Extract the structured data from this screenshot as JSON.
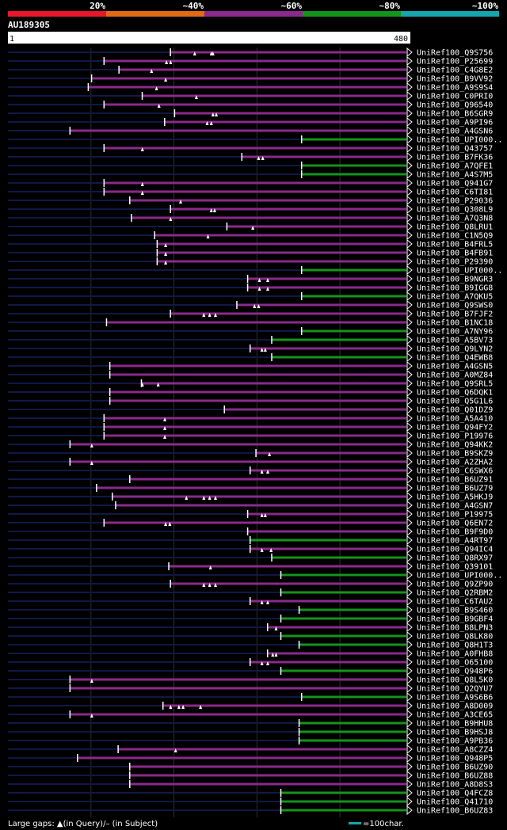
{
  "chart_data": {
    "type": "alignment-coverage",
    "query": {
      "id": "AU189305",
      "start": "1",
      "end": "480",
      "length": 480
    },
    "identity_legend": [
      {
        "label": "20%",
        "color": "#e8182a"
      },
      {
        "label": "~40%",
        "color": "#e06b14"
      },
      {
        "label": "~60%",
        "color": "#8a2a8c"
      },
      {
        "label": "~80%",
        "color": "#15941c"
      },
      {
        "label": "~100%",
        "color": "#17a6ad"
      }
    ],
    "gridlines": [
      100,
      200,
      300,
      400
    ],
    "hits": [
      {
        "name": "UniRef100_Q9S756",
        "start": 196,
        "identity": "~60%",
        "marks": [
          225,
          245,
          247
        ]
      },
      {
        "name": "UniRef100_P25699",
        "start": 116,
        "identity": "~60%",
        "marks": [
          191,
          196
        ]
      },
      {
        "name": "UniRef100_C4G8E2",
        "start": 134,
        "identity": "~60%",
        "marks": [
          173
        ]
      },
      {
        "name": "UniRef100_B9VV92",
        "start": 101,
        "identity": "~60%",
        "marks": [
          190
        ]
      },
      {
        "name": "UniRef100_A9S9S4",
        "start": 97,
        "identity": "~60%",
        "marks": [
          179
        ]
      },
      {
        "name": "UniRef100_C0PRI0",
        "start": 162,
        "identity": "~60%",
        "marks": [
          227
        ]
      },
      {
        "name": "UniRef100_Q96540",
        "start": 116,
        "identity": "~60%",
        "marks": [
          182
        ]
      },
      {
        "name": "UniRef100_B6SGR9",
        "start": 201,
        "identity": "~60%",
        "marks": [
          247,
          251
        ]
      },
      {
        "name": "UniRef100_A9PI96",
        "start": 189,
        "identity": "~60%",
        "marks": [
          240,
          245
        ]
      },
      {
        "name": "UniRef100_A4GSN6",
        "start": 75,
        "identity": "~60%",
        "marks": []
      },
      {
        "name": "UniRef100_UPI000..",
        "start": 354,
        "identity": "~80%",
        "marks": []
      },
      {
        "name": "UniRef100_Q43757",
        "start": 116,
        "identity": "~60%",
        "marks": [
          162
        ]
      },
      {
        "name": "UniRef100_B7FK36",
        "start": 282,
        "identity": "~60%",
        "marks": [
          302,
          307
        ]
      },
      {
        "name": "UniRef100_A7QFE1",
        "start": 354,
        "identity": "~80%",
        "marks": []
      },
      {
        "name": "UniRef100_A4S7M5",
        "start": 354,
        "identity": "~80%",
        "marks": []
      },
      {
        "name": "UniRef100_Q941G7",
        "start": 116,
        "identity": "~60%",
        "marks": [
          162
        ]
      },
      {
        "name": "UniRef100_C6TI81",
        "start": 116,
        "identity": "~60%",
        "marks": [
          162
        ]
      },
      {
        "name": "UniRef100_P29036",
        "start": 147,
        "identity": "~60%",
        "marks": [
          208
        ]
      },
      {
        "name": "UniRef100_Q308L9",
        "start": 196,
        "identity": "~60%",
        "marks": [
          245,
          249
        ]
      },
      {
        "name": "UniRef100_A7Q3N8",
        "start": 149,
        "identity": "~60%",
        "marks": [
          196
        ]
      },
      {
        "name": "UniRef100_Q8LRU1",
        "start": 264,
        "identity": "~60%",
        "marks": [
          295
        ]
      },
      {
        "name": "UniRef100_C1N5Q9",
        "start": 177,
        "identity": "~60%",
        "marks": [
          241
        ]
      },
      {
        "name": "UniRef100_B4FRL5",
        "start": 180,
        "identity": "~60%",
        "marks": [
          190
        ]
      },
      {
        "name": "UniRef100_B4FB91",
        "start": 180,
        "identity": "~60%",
        "marks": [
          190
        ]
      },
      {
        "name": "UniRef100_P29390",
        "start": 180,
        "identity": "~60%",
        "marks": [
          190
        ]
      },
      {
        "name": "UniRef100_UPI000..",
        "start": 354,
        "identity": "~80%",
        "marks": []
      },
      {
        "name": "UniRef100_B9NGR3",
        "start": 289,
        "identity": "~60%",
        "marks": [
          303,
          313
        ]
      },
      {
        "name": "UniRef100_B9IGG8",
        "start": 289,
        "identity": "~60%",
        "marks": [
          303,
          313
        ]
      },
      {
        "name": "UniRef100_A7QKU5",
        "start": 354,
        "identity": "~80%",
        "marks": []
      },
      {
        "name": "UniRef100_Q9SWS0",
        "start": 276,
        "identity": "~60%",
        "marks": [
          297,
          302
        ]
      },
      {
        "name": "UniRef100_B7FJF2",
        "start": 196,
        "identity": "~60%",
        "marks": [
          236,
          243,
          250
        ]
      },
      {
        "name": "UniRef100_B1NC18",
        "start": 119,
        "identity": "~60%",
        "marks": []
      },
      {
        "name": "UniRef100_A7NY96",
        "start": 354,
        "identity": "~80%",
        "marks": []
      },
      {
        "name": "UniRef100_A5BV73",
        "start": 318,
        "identity": "~80%",
        "marks": []
      },
      {
        "name": "UniRef100_Q9LYN2",
        "start": 292,
        "identity": "~60%",
        "marks": [
          306,
          310
        ]
      },
      {
        "name": "UniRef100_Q4EWB8",
        "start": 318,
        "identity": "~80%",
        "marks": []
      },
      {
        "name": "UniRef100_A4GSN5",
        "start": 123,
        "identity": "~60%",
        "marks": []
      },
      {
        "name": "UniRef100_A0MZ84",
        "start": 123,
        "identity": "~60%",
        "marks": []
      },
      {
        "name": "UniRef100_Q9SRL5",
        "start": 161,
        "identity": "~60%",
        "marks": [
          162,
          181
        ]
      },
      {
        "name": "UniRef100_Q6DQK1",
        "start": 123,
        "identity": "~60%",
        "marks": []
      },
      {
        "name": "UniRef100_Q5G1L6",
        "start": 123,
        "identity": "~60%",
        "marks": []
      },
      {
        "name": "UniRef100_Q01DZ9",
        "start": 261,
        "identity": "~60%",
        "marks": []
      },
      {
        "name": "UniRef100_A5A410",
        "start": 116,
        "identity": "~60%",
        "marks": [
          189
        ]
      },
      {
        "name": "UniRef100_Q94FY2",
        "start": 116,
        "identity": "~60%",
        "marks": [
          189
        ]
      },
      {
        "name": "UniRef100_P19976",
        "start": 116,
        "identity": "~60%",
        "marks": [
          189
        ]
      },
      {
        "name": "UniRef100_Q94KK2",
        "start": 75,
        "identity": "~60%",
        "marks": [
          101
        ]
      },
      {
        "name": "UniRef100_B9SKZ9",
        "start": 299,
        "identity": "~60%",
        "marks": [
          315
        ]
      },
      {
        "name": "UniRef100_A2ZHA2",
        "start": 75,
        "identity": "~60%",
        "marks": [
          101
        ]
      },
      {
        "name": "UniRef100_C6SWX6",
        "start": 292,
        "identity": "~60%",
        "marks": [
          306,
          313
        ]
      },
      {
        "name": "UniRef100_B6UZ91",
        "start": 147,
        "identity": "~60%",
        "marks": []
      },
      {
        "name": "UniRef100_B6UZ79",
        "start": 107,
        "identity": "~60%",
        "marks": []
      },
      {
        "name": "UniRef100_A5HKJ9",
        "start": 126,
        "identity": "~60%",
        "marks": [
          215,
          236,
          243,
          250
        ]
      },
      {
        "name": "UniRef100_A4GSN7",
        "start": 130,
        "identity": "~60%",
        "marks": []
      },
      {
        "name": "UniRef100_P19975",
        "start": 289,
        "identity": "~60%",
        "marks": [
          306,
          310
        ]
      },
      {
        "name": "UniRef100_Q6EN72",
        "start": 116,
        "identity": "~60%",
        "marks": [
          190,
          195
        ]
      },
      {
        "name": "UniRef100_B9F9D0",
        "start": 289,
        "identity": "~60%",
        "marks": []
      },
      {
        "name": "UniRef100_A4RT97",
        "start": 292,
        "identity": "~80%",
        "marks": []
      },
      {
        "name": "UniRef100_Q94IC4",
        "start": 292,
        "identity": "~60%",
        "marks": [
          306,
          317
        ]
      },
      {
        "name": "UniRef100_Q8RX97",
        "start": 318,
        "identity": "~80%",
        "marks": []
      },
      {
        "name": "UniRef100_Q39101",
        "start": 194,
        "identity": "~60%",
        "marks": [
          244
        ]
      },
      {
        "name": "UniRef100_UPI000..",
        "start": 329,
        "identity": "~80%",
        "marks": []
      },
      {
        "name": "UniRef100_Q9ZP90",
        "start": 196,
        "identity": "~60%",
        "marks": [
          236,
          243,
          250
        ]
      },
      {
        "name": "UniRef100_Q2RBM2",
        "start": 329,
        "identity": "~80%",
        "marks": []
      },
      {
        "name": "UniRef100_C6TAU2",
        "start": 292,
        "identity": "~60%",
        "marks": [
          306,
          313
        ]
      },
      {
        "name": "UniRef100_B9S460",
        "start": 351,
        "identity": "~80%",
        "marks": []
      },
      {
        "name": "UniRef100_B9GBF4",
        "start": 329,
        "identity": "~80%",
        "marks": []
      },
      {
        "name": "UniRef100_B8LPN3",
        "start": 313,
        "identity": "~60%",
        "marks": [
          323
        ]
      },
      {
        "name": "UniRef100_Q8LK80",
        "start": 329,
        "identity": "~80%",
        "marks": []
      },
      {
        "name": "UniRef100_Q8H1T3",
        "start": 351,
        "identity": "~80%",
        "marks": []
      },
      {
        "name": "UniRef100_A0FHB8",
        "start": 313,
        "identity": "~60%",
        "marks": [
          319,
          323
        ]
      },
      {
        "name": "UniRef100_O65100",
        "start": 292,
        "identity": "~60%",
        "marks": [
          306,
          313
        ]
      },
      {
        "name": "UniRef100_Q948P6",
        "start": 329,
        "identity": "~80%",
        "marks": []
      },
      {
        "name": "UniRef100_Q8L5K0",
        "start": 75,
        "identity": "~60%",
        "marks": [
          101
        ]
      },
      {
        "name": "UniRef100_Q2QYU7",
        "start": 75,
        "identity": "~60%",
        "marks": []
      },
      {
        "name": "UniRef100_A9S6B6",
        "start": 354,
        "identity": "~80%",
        "marks": []
      },
      {
        "name": "UniRef100_A8D009",
        "start": 187,
        "identity": "~60%",
        "marks": [
          196,
          206,
          211,
          232
        ]
      },
      {
        "name": "UniRef100_A3CE65",
        "start": 75,
        "identity": "~60%",
        "marks": [
          101
        ]
      },
      {
        "name": "UniRef100_B9HHU8",
        "start": 351,
        "identity": "~80%",
        "marks": []
      },
      {
        "name": "UniRef100_B9HSJ8",
        "start": 351,
        "identity": "~80%",
        "marks": []
      },
      {
        "name": "UniRef100_A9PB36",
        "start": 351,
        "identity": "~80%",
        "marks": []
      },
      {
        "name": "UniRef100_A8CZZ4",
        "start": 133,
        "identity": "~60%",
        "marks": [
          202
        ]
      },
      {
        "name": "UniRef100_Q948P5",
        "start": 84,
        "identity": "~60%",
        "marks": []
      },
      {
        "name": "UniRef100_B6UZ90",
        "start": 147,
        "identity": "~60%",
        "marks": []
      },
      {
        "name": "UniRef100_B6UZ88",
        "start": 147,
        "identity": "~60%",
        "marks": []
      },
      {
        "name": "UniRef100_A8D8S3",
        "start": 147,
        "identity": "~60%",
        "marks": []
      },
      {
        "name": "UniRef100_Q4FCZ8",
        "start": 329,
        "identity": "~80%",
        "marks": []
      },
      {
        "name": "UniRef100_Q41710",
        "start": 329,
        "identity": "~80%",
        "marks": []
      },
      {
        "name": "UniRef100_B6UZ83",
        "start": 329,
        "identity": "~80%",
        "marks": []
      }
    ],
    "footer": {
      "gaps_label": "Large gaps: ▲(in Query)/– (in Subject)",
      "scale_label": "=100char."
    }
  }
}
